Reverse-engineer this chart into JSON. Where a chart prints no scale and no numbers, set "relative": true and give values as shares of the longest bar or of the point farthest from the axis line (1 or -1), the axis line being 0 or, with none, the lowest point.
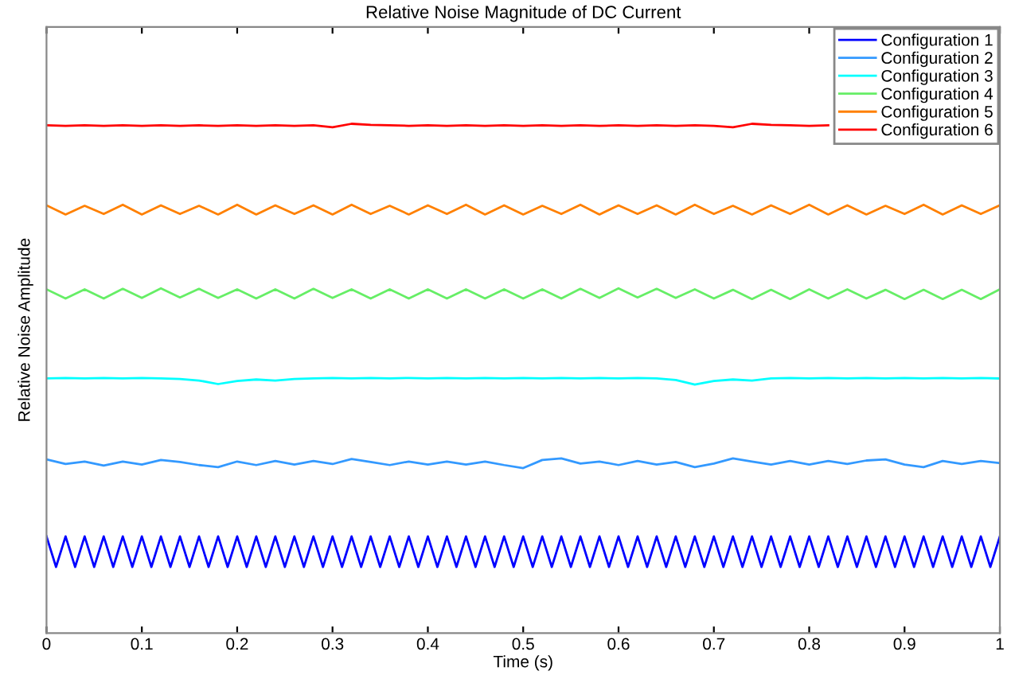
{
  "chart_data": {
    "type": "line",
    "title": "Relative Noise Magnitude of DC Current",
    "xlabel": "Time (s)",
    "ylabel": "Relative Noise Amplitude",
    "relative": true,
    "xlim": [
      0,
      1
    ],
    "xticks": [
      0,
      0.1,
      0.2,
      0.3,
      0.4,
      0.5,
      0.6,
      0.7,
      0.8,
      0.9,
      1
    ],
    "legend": "top right",
    "grid": false,
    "x": [
      0,
      0.02,
      0.04,
      0.06,
      0.08,
      0.1,
      0.12,
      0.14,
      0.16,
      0.18,
      0.2,
      0.22,
      0.24,
      0.26,
      0.28,
      0.3,
      0.32,
      0.34,
      0.36,
      0.38,
      0.4,
      0.42,
      0.44,
      0.46,
      0.48,
      0.5,
      0.52,
      0.54,
      0.56,
      0.58,
      0.6,
      0.62,
      0.64,
      0.66,
      0.68,
      0.7,
      0.72,
      0.74,
      0.76,
      0.78,
      0.8,
      0.82,
      0.84,
      0.86,
      0.88,
      0.9,
      0.92,
      0.94,
      0.96,
      0.98,
      1
    ],
    "series": [
      {
        "name": "Configuration 1",
        "color": "#0000ff",
        "x": [
          0,
          0.01,
          0.02,
          0.03,
          0.04,
          0.05,
          0.06,
          0.07,
          0.08,
          0.09,
          0.1,
          0.11,
          0.12,
          0.13,
          0.14,
          0.15,
          0.16,
          0.17,
          0.18,
          0.19,
          0.2,
          0.21,
          0.22,
          0.23,
          0.24,
          0.25,
          0.26,
          0.27,
          0.28,
          0.29,
          0.3,
          0.31,
          0.32,
          0.33,
          0.34,
          0.35,
          0.36,
          0.37,
          0.38,
          0.39,
          0.4,
          0.41,
          0.42,
          0.43,
          0.44,
          0.45,
          0.46,
          0.47,
          0.48,
          0.49,
          0.5,
          0.51,
          0.52,
          0.53,
          0.54,
          0.55,
          0.56,
          0.57,
          0.58,
          0.59,
          0.6,
          0.61,
          0.62,
          0.63,
          0.64,
          0.65,
          0.66,
          0.67,
          0.68,
          0.69,
          0.7,
          0.71,
          0.72,
          0.73,
          0.74,
          0.75,
          0.76,
          0.77,
          0.78,
          0.79,
          0.8,
          0.81,
          0.82,
          0.83,
          0.84,
          0.85,
          0.86,
          0.87,
          0.88,
          0.89,
          0.9,
          0.91,
          0.92,
          0.93,
          0.94,
          0.95,
          0.96,
          0.97,
          0.98,
          0.99,
          1
        ],
        "values": [
          0.19,
          0.13,
          0.19,
          0.13,
          0.19,
          0.13,
          0.19,
          0.13,
          0.19,
          0.13,
          0.19,
          0.13,
          0.19,
          0.13,
          0.19,
          0.13,
          0.19,
          0.13,
          0.19,
          0.13,
          0.19,
          0.13,
          0.19,
          0.13,
          0.19,
          0.13,
          0.19,
          0.13,
          0.19,
          0.13,
          0.19,
          0.13,
          0.19,
          0.13,
          0.19,
          0.13,
          0.19,
          0.13,
          0.19,
          0.13,
          0.19,
          0.13,
          0.19,
          0.13,
          0.19,
          0.13,
          0.19,
          0.13,
          0.19,
          0.13,
          0.19,
          0.13,
          0.19,
          0.13,
          0.19,
          0.13,
          0.19,
          0.13,
          0.19,
          0.13,
          0.19,
          0.13,
          0.19,
          0.13,
          0.19,
          0.13,
          0.19,
          0.13,
          0.19,
          0.13,
          0.19,
          0.13,
          0.19,
          0.13,
          0.19,
          0.13,
          0.19,
          0.13,
          0.19,
          0.13,
          0.19,
          0.13,
          0.19,
          0.13,
          0.19,
          0.13,
          0.19,
          0.13,
          0.19,
          0.13,
          0.19,
          0.13,
          0.19,
          0.13,
          0.19,
          0.13,
          0.19,
          0.13,
          0.19,
          0.13,
          0.19
        ]
      },
      {
        "name": "Configuration 2",
        "color": "#3399ff",
        "values": [
          0.341,
          0.332,
          0.337,
          0.329,
          0.337,
          0.331,
          0.34,
          0.336,
          0.33,
          0.326,
          0.337,
          0.33,
          0.338,
          0.331,
          0.338,
          0.332,
          0.342,
          0.336,
          0.33,
          0.337,
          0.331,
          0.337,
          0.331,
          0.337,
          0.33,
          0.324,
          0.34,
          0.343,
          0.333,
          0.337,
          0.33,
          0.338,
          0.331,
          0.336,
          0.326,
          0.333,
          0.343,
          0.337,
          0.331,
          0.338,
          0.331,
          0.338,
          0.332,
          0.339,
          0.341,
          0.331,
          0.326,
          0.338,
          0.332,
          0.338,
          0.334
        ]
      },
      {
        "name": "Configuration 3",
        "color": "#00ffff",
        "values": [
          0.5,
          0.501,
          0.5,
          0.501,
          0.5,
          0.501,
          0.5,
          0.499,
          0.496,
          0.489,
          0.495,
          0.498,
          0.496,
          0.499,
          0.5,
          0.501,
          0.5,
          0.501,
          0.5,
          0.501,
          0.5,
          0.501,
          0.5,
          0.501,
          0.5,
          0.501,
          0.5,
          0.501,
          0.5,
          0.501,
          0.5,
          0.501,
          0.5,
          0.497,
          0.488,
          0.495,
          0.498,
          0.496,
          0.5,
          0.501,
          0.5,
          0.501,
          0.5,
          0.501,
          0.5,
          0.501,
          0.5,
          0.501,
          0.5,
          0.501,
          0.5
        ]
      },
      {
        "name": "Configuration 4",
        "color": "#66ee66",
        "values": [
          0.675,
          0.657,
          0.675,
          0.657,
          0.676,
          0.658,
          0.677,
          0.659,
          0.676,
          0.658,
          0.675,
          0.657,
          0.675,
          0.657,
          0.676,
          0.658,
          0.675,
          0.657,
          0.675,
          0.657,
          0.675,
          0.657,
          0.675,
          0.657,
          0.675,
          0.657,
          0.675,
          0.657,
          0.676,
          0.658,
          0.677,
          0.659,
          0.676,
          0.658,
          0.675,
          0.657,
          0.674,
          0.656,
          0.674,
          0.656,
          0.675,
          0.657,
          0.675,
          0.657,
          0.674,
          0.656,
          0.674,
          0.656,
          0.674,
          0.656,
          0.675
        ]
      },
      {
        "name": "Configuration 5",
        "color": "#ff8000",
        "values": [
          0.84,
          0.822,
          0.839,
          0.823,
          0.841,
          0.822,
          0.84,
          0.823,
          0.839,
          0.822,
          0.841,
          0.822,
          0.84,
          0.823,
          0.84,
          0.822,
          0.841,
          0.823,
          0.839,
          0.822,
          0.84,
          0.823,
          0.841,
          0.822,
          0.84,
          0.822,
          0.839,
          0.823,
          0.841,
          0.822,
          0.84,
          0.823,
          0.84,
          0.822,
          0.841,
          0.823,
          0.839,
          0.822,
          0.84,
          0.823,
          0.841,
          0.822,
          0.84,
          0.822,
          0.839,
          0.823,
          0.841,
          0.822,
          0.84,
          0.823,
          0.84
        ]
      },
      {
        "name": "Configuration 6",
        "color": "#ff0000",
        "values": [
          0.997,
          0.996,
          0.997,
          0.996,
          0.997,
          0.996,
          0.997,
          0.996,
          0.997,
          0.996,
          0.997,
          0.996,
          0.997,
          0.996,
          0.997,
          0.993,
          1.0,
          0.998,
          0.997,
          0.996,
          0.997,
          0.996,
          0.997,
          0.996,
          0.997,
          0.996,
          0.997,
          0.996,
          0.997,
          0.996,
          0.997,
          0.996,
          0.997,
          0.996,
          0.997,
          0.996,
          0.993,
          1.0,
          0.998,
          0.997,
          0.996,
          0.997,
          null,
          null,
          null,
          null,
          null,
          null,
          null,
          null,
          null
        ]
      }
    ]
  }
}
